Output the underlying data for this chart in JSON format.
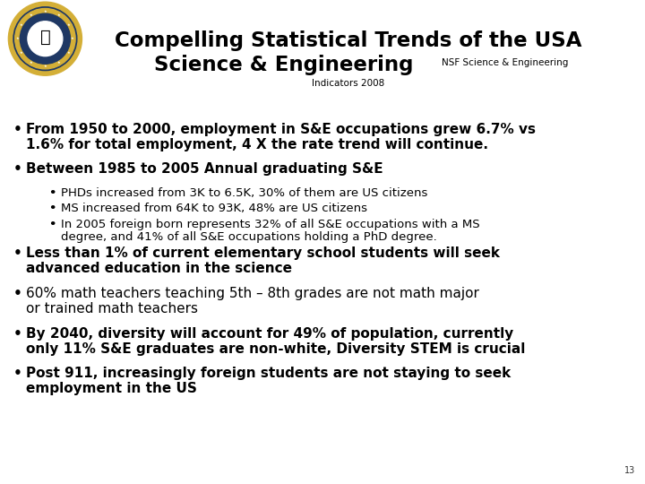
{
  "title_line1": "Compelling Statistical Trends of the USA",
  "title_line2": "Science & Engineering",
  "subtitle_right": "NSF Science & Engineering",
  "subtitle_center": "Indicators 2008",
  "page_number": "13",
  "background_color": "#ffffff",
  "title_color": "#000000",
  "separator_color_top": "#1f3864",
  "separator_color_bottom": "#c9a84c",
  "seal_outer": "#1f3864",
  "seal_ring": "#d4af37",
  "seal_inner": "#1f3864",
  "bullet_items": [
    {
      "text": "From 1950 to 2000, employment in S&E occupations grew 6.7% vs\n1.6% for total employment, 4 X the rate trend will continue.",
      "bold": true,
      "sub": false
    },
    {
      "text": "Between 1985 to 2005 Annual graduating S&E",
      "bold": true,
      "sub": false
    },
    {
      "text": "PHDs increased from 3K to 6.5K, 30% of them are US citizens",
      "bold": false,
      "sub": true
    },
    {
      "text": "MS increased from 64K to 93K, 48% are US citizens",
      "bold": false,
      "sub": true
    },
    {
      "text": "In 2005 foreign born represents 32% of all S&E occupations with a MS\ndegree, and 41% of all S&E occupations holding a PhD degree.",
      "bold": false,
      "sub": true
    },
    {
      "text": "Less than 1% of current elementary school students will seek\nadvanced education in the science",
      "bold": true,
      "sub": false
    },
    {
      "text": "60% math teachers teaching 5th – 8th grades are not math major\nor trained math teachers",
      "bold": false,
      "sub": false
    },
    {
      "text": "By 2040, diversity will account for 49% of population, currently\nonly 11% S&E graduates are non-white, Diversity STEM is crucial",
      "bold": true,
      "sub": false
    },
    {
      "text": "Post 911, increasingly foreign students are not staying to seek\nemployment in the US",
      "bold": true,
      "sub": false
    }
  ]
}
